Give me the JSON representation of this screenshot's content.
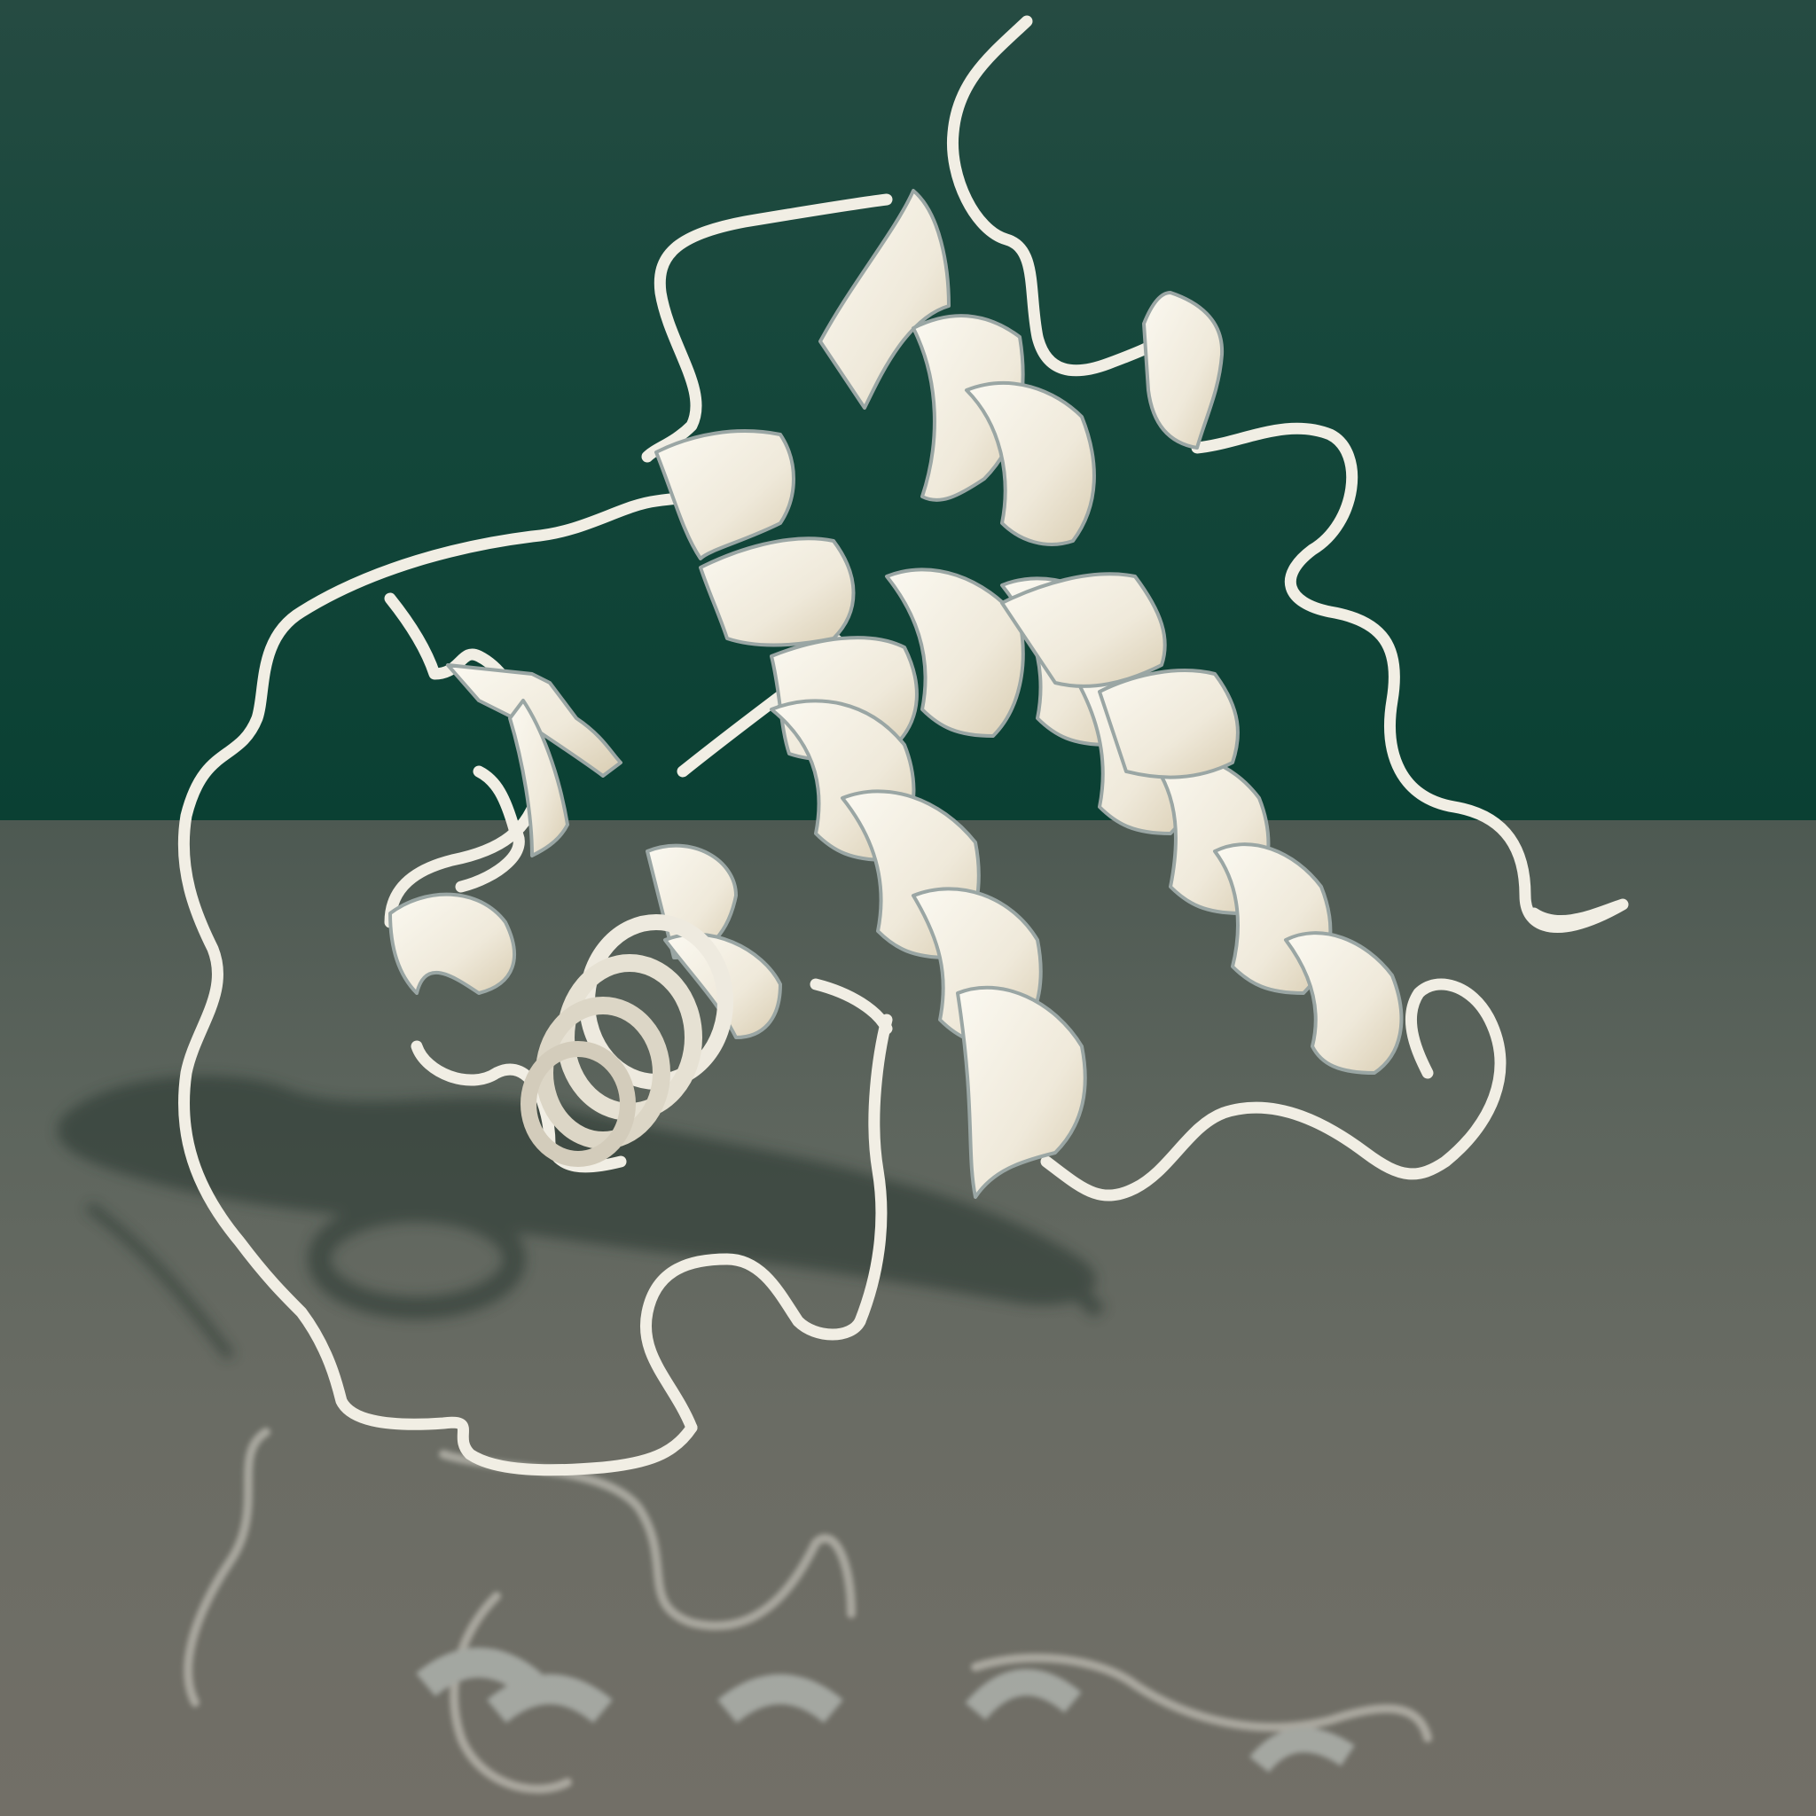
{
  "scene": {
    "subject": "protein-ribbon-structure",
    "colors": {
      "backdrop": "#0f4538",
      "floor": "#6a6c64",
      "ribbon": "#f2efe4",
      "ribbon_shade": "#d8cdb4",
      "ribbon_edge": "#9aa6a4",
      "shadow": "#2a3a33"
    }
  }
}
